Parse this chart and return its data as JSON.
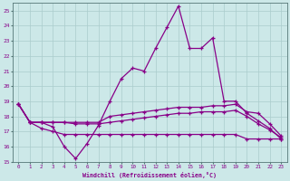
{
  "xlabel": "Windchill (Refroidissement éolien,°C)",
  "background_color": "#cce8e8",
  "grid_color": "#aacccc",
  "line_color": "#880088",
  "xlim": [
    -0.5,
    23.5
  ],
  "ylim": [
    15,
    25.5
  ],
  "xticks": [
    0,
    1,
    2,
    3,
    4,
    5,
    6,
    7,
    8,
    9,
    10,
    11,
    12,
    13,
    14,
    15,
    16,
    17,
    18,
    19,
    20,
    21,
    22,
    23
  ],
  "yticks": [
    15,
    16,
    17,
    18,
    19,
    20,
    21,
    22,
    23,
    24,
    25
  ],
  "series": [
    [
      18.8,
      17.6,
      17.6,
      17.3,
      16.0,
      15.2,
      16.2,
      17.4,
      19.0,
      20.5,
      21.2,
      21.0,
      22.5,
      23.9,
      25.3,
      22.5,
      22.5,
      23.2,
      19.0,
      19.0,
      18.2,
      17.7,
      17.2,
      16.5
    ],
    [
      18.8,
      17.6,
      17.6,
      17.6,
      17.6,
      17.6,
      17.6,
      17.6,
      18.0,
      18.1,
      18.2,
      18.3,
      18.4,
      18.5,
      18.6,
      18.6,
      18.6,
      18.7,
      18.7,
      18.8,
      18.3,
      18.2,
      17.5,
      16.7
    ],
    [
      18.8,
      17.6,
      17.6,
      17.6,
      17.6,
      17.5,
      17.5,
      17.5,
      17.6,
      17.7,
      17.8,
      17.9,
      18.0,
      18.1,
      18.2,
      18.2,
      18.3,
      18.3,
      18.3,
      18.4,
      18.0,
      17.5,
      17.1,
      16.6
    ],
    [
      18.8,
      17.6,
      17.2,
      17.0,
      16.8,
      16.8,
      16.8,
      16.8,
      16.8,
      16.8,
      16.8,
      16.8,
      16.8,
      16.8,
      16.8,
      16.8,
      16.8,
      16.8,
      16.8,
      16.8,
      16.5,
      16.5,
      16.5,
      16.5
    ]
  ]
}
